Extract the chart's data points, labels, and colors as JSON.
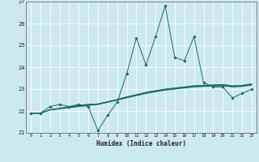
{
  "xlabel": "Humidex (Indice chaleur)",
  "background_color": "#cce9f0",
  "grid_color": "#b0d8e2",
  "line_color": "#1a6b60",
  "xlim": [
    -0.5,
    23.5
  ],
  "ylim": [
    21,
    27
  ],
  "yticks": [
    21,
    22,
    23,
    24,
    25,
    26,
    27
  ],
  "xticks": [
    0,
    1,
    2,
    3,
    4,
    5,
    6,
    7,
    8,
    9,
    10,
    11,
    12,
    13,
    14,
    15,
    16,
    17,
    18,
    19,
    20,
    21,
    22,
    23
  ],
  "main_line_x": [
    0,
    1,
    2,
    3,
    4,
    5,
    6,
    7,
    8,
    9,
    10,
    11,
    12,
    13,
    14,
    15,
    16,
    17,
    18,
    19,
    20,
    21,
    22,
    23
  ],
  "main_line_y": [
    21.9,
    21.9,
    22.2,
    22.3,
    22.2,
    22.3,
    22.2,
    21.1,
    21.8,
    22.4,
    23.7,
    25.35,
    24.1,
    25.4,
    26.8,
    24.45,
    24.3,
    25.4,
    23.3,
    23.1,
    23.1,
    22.6,
    22.8,
    23.0
  ],
  "smooth_lines": [
    [
      21.9,
      21.9,
      22.05,
      22.1,
      22.15,
      22.2,
      22.25,
      22.3,
      22.4,
      22.5,
      22.6,
      22.7,
      22.8,
      22.88,
      22.95,
      23.0,
      23.05,
      23.1,
      23.12,
      23.14,
      23.15,
      23.1,
      23.12,
      23.18
    ],
    [
      21.9,
      21.9,
      22.05,
      22.1,
      22.18,
      22.22,
      22.27,
      22.3,
      22.4,
      22.5,
      22.62,
      22.72,
      22.82,
      22.9,
      22.97,
      23.02,
      23.07,
      23.12,
      23.14,
      23.16,
      23.17,
      23.12,
      23.14,
      23.2
    ],
    [
      21.9,
      21.9,
      22.05,
      22.12,
      22.2,
      22.25,
      22.3,
      22.32,
      22.42,
      22.52,
      22.64,
      22.74,
      22.84,
      22.92,
      22.99,
      23.04,
      23.09,
      23.14,
      23.16,
      23.18,
      23.2,
      23.14,
      23.16,
      23.22
    ],
    [
      21.9,
      21.9,
      22.05,
      22.12,
      22.2,
      22.25,
      22.3,
      22.32,
      22.42,
      22.52,
      22.64,
      22.74,
      22.85,
      22.93,
      23.0,
      23.05,
      23.1,
      23.15,
      23.17,
      23.19,
      23.21,
      23.15,
      23.17,
      23.24
    ]
  ]
}
